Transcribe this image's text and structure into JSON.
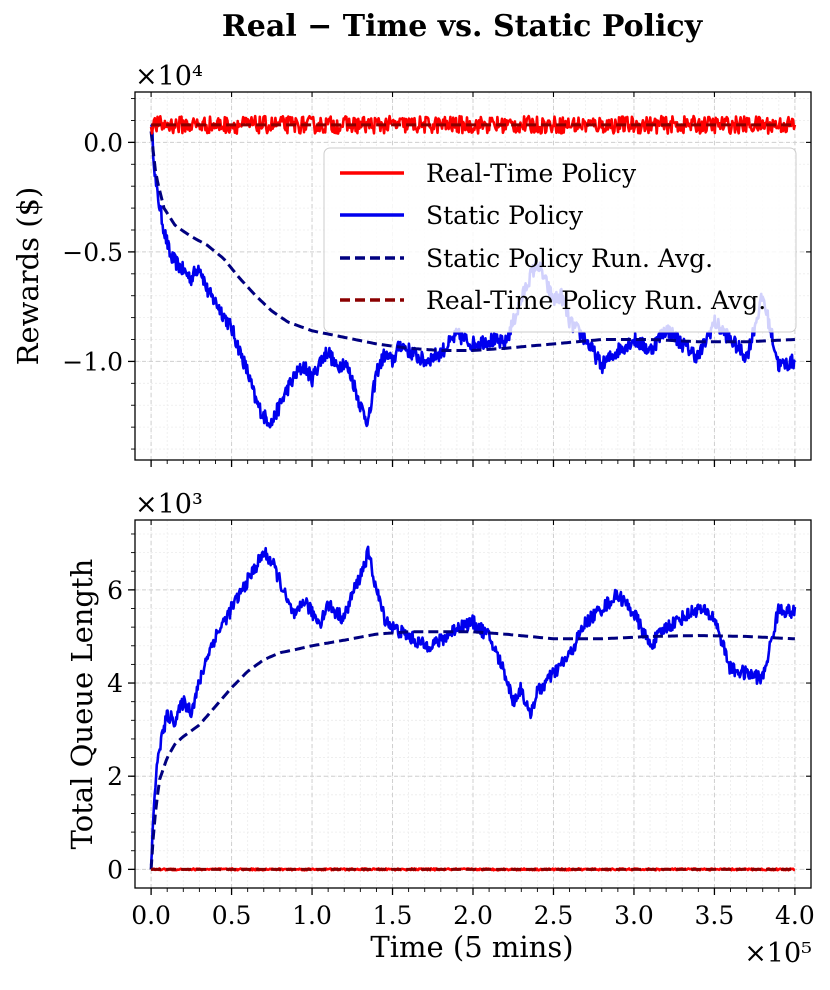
{
  "chart_data": {
    "type": "line",
    "title": "Real − Time vs. Static Policy",
    "xlabel": "Time (5 mins)",
    "x_multiplier": "×10⁵",
    "x_ticks": [
      0.0,
      0.5,
      1.0,
      1.5,
      2.0,
      2.5,
      3.0,
      3.5,
      4.0
    ],
    "x_tick_labels": [
      "0.0",
      "0.5",
      "1.0",
      "1.5",
      "2.0",
      "2.5",
      "3.0",
      "3.5",
      "4.0"
    ],
    "xlim": [
      -0.1,
      4.1
    ],
    "colors": {
      "real_time": "#ff0000",
      "static": "#0000ee",
      "static_avg": "#000080",
      "real_time_avg": "#8b0000"
    },
    "legend": {
      "position": "top-right",
      "entries": [
        {
          "label": "Real-Time Policy",
          "color": "#ff0000",
          "style": "solid"
        },
        {
          "label": "Static Policy",
          "color": "#0000ee",
          "style": "solid"
        },
        {
          "label": "Static Policy Run. Avg.",
          "color": "#000080",
          "style": "dashed"
        },
        {
          "label": "Real-Time Policy Run. Avg.",
          "color": "#8b0000",
          "style": "dashed"
        }
      ]
    },
    "subplots": [
      {
        "name": "rewards",
        "ylabel": "Rewards ($)",
        "y_multiplier": "×10⁴",
        "ylim": [
          -1.45,
          0.23
        ],
        "y_ticks": [
          0.0,
          -0.5,
          -1.0
        ],
        "y_tick_labels": [
          "0.0",
          "−0.5",
          "−1.0"
        ],
        "series": [
          {
            "name": "Real-Time Policy",
            "key": "real_time",
            "constant": 0.08,
            "noise": 0.04
          },
          {
            "name": "Static Policy",
            "key": "static",
            "noise": 0.035,
            "x": [
              0,
              0.03,
              0.08,
              0.12,
              0.18,
              0.25,
              0.3,
              0.35,
              0.42,
              0.5,
              0.55,
              0.6,
              0.65,
              0.7,
              0.75,
              0.8,
              0.85,
              0.9,
              0.95,
              1.0,
              1.05,
              1.1,
              1.15,
              1.2,
              1.25,
              1.3,
              1.35,
              1.4,
              1.45,
              1.5,
              1.55,
              1.6,
              1.7,
              1.8,
              1.9,
              2.0,
              2.1,
              2.2,
              2.3,
              2.35,
              2.4,
              2.5,
              2.55,
              2.6,
              2.7,
              2.8,
              2.9,
              3.0,
              3.1,
              3.2,
              3.3,
              3.4,
              3.5,
              3.6,
              3.7,
              3.8,
              3.9,
              4.0
            ],
            "y": [
              0.1,
              -0.2,
              -0.4,
              -0.52,
              -0.57,
              -0.62,
              -0.56,
              -0.68,
              -0.75,
              -0.85,
              -0.95,
              -1.05,
              -1.18,
              -1.25,
              -1.28,
              -1.2,
              -1.12,
              -1.06,
              -1.02,
              -1.08,
              -1.0,
              -0.95,
              -1.03,
              -1.0,
              -1.08,
              -1.2,
              -1.28,
              -1.05,
              -0.97,
              -1.0,
              -0.92,
              -0.95,
              -1.0,
              -0.96,
              -0.88,
              -0.92,
              -0.9,
              -0.92,
              -0.72,
              -0.62,
              -0.55,
              -0.72,
              -0.7,
              -0.82,
              -0.9,
              -1.02,
              -0.95,
              -0.9,
              -0.95,
              -0.85,
              -0.92,
              -0.98,
              -0.82,
              -0.9,
              -0.98,
              -0.7,
              -1.02,
              -1.0
            ]
          },
          {
            "name": "Static Policy Run. Avg.",
            "key": "static_avg",
            "dashed": true,
            "x": [
              0,
              0.03,
              0.08,
              0.15,
              0.25,
              0.35,
              0.45,
              0.55,
              0.65,
              0.75,
              0.85,
              1.0,
              1.2,
              1.4,
              1.6,
              1.8,
              2.0,
              2.2,
              2.5,
              2.8,
              3.1,
              3.4,
              3.7,
              4.0
            ],
            "y": [
              0.05,
              -0.15,
              -0.3,
              -0.38,
              -0.43,
              -0.47,
              -0.53,
              -0.62,
              -0.7,
              -0.77,
              -0.82,
              -0.86,
              -0.89,
              -0.92,
              -0.94,
              -0.95,
              -0.95,
              -0.94,
              -0.92,
              -0.9,
              -0.9,
              -0.91,
              -0.91,
              -0.9
            ]
          },
          {
            "name": "Real-Time Policy Run. Avg.",
            "key": "real_time_avg",
            "dashed": true,
            "constant": 0.08
          }
        ]
      },
      {
        "name": "queue",
        "ylabel": "Total Queue Length",
        "y_multiplier": "×10³",
        "ylim": [
          -0.4,
          7.5
        ],
        "y_ticks": [
          0,
          2,
          4,
          6
        ],
        "y_tick_labels": [
          "0",
          "2",
          "4",
          "6"
        ],
        "series": [
          {
            "name": "Real-Time Policy",
            "key": "real_time",
            "constant": 0.0,
            "noise": 0.02
          },
          {
            "name": "Static Policy",
            "key": "static",
            "noise": 0.15,
            "x": [
              0,
              0.02,
              0.05,
              0.1,
              0.15,
              0.2,
              0.25,
              0.3,
              0.35,
              0.4,
              0.45,
              0.5,
              0.55,
              0.6,
              0.65,
              0.7,
              0.75,
              0.8,
              0.85,
              0.9,
              0.95,
              1.0,
              1.05,
              1.1,
              1.15,
              1.2,
              1.25,
              1.3,
              1.35,
              1.4,
              1.45,
              1.5,
              1.6,
              1.7,
              1.8,
              1.9,
              2.0,
              2.1,
              2.2,
              2.25,
              2.3,
              2.35,
              2.4,
              2.5,
              2.6,
              2.7,
              2.8,
              2.9,
              3.0,
              3.1,
              3.2,
              3.3,
              3.4,
              3.5,
              3.6,
              3.7,
              3.8,
              3.9,
              4.0
            ],
            "y": [
              0,
              1.6,
              2.6,
              3.3,
              3.2,
              3.6,
              3.4,
              4.0,
              4.6,
              5.0,
              5.3,
              5.6,
              5.9,
              6.2,
              6.5,
              6.8,
              6.6,
              6.2,
              5.7,
              5.4,
              5.8,
              5.5,
              5.3,
              5.7,
              5.5,
              5.4,
              5.9,
              6.3,
              6.8,
              6.0,
              5.4,
              5.2,
              5.0,
              4.8,
              4.9,
              5.2,
              5.3,
              5.0,
              4.2,
              3.6,
              3.9,
              3.3,
              3.8,
              4.2,
              4.6,
              5.3,
              5.6,
              5.9,
              5.5,
              4.8,
              5.2,
              5.4,
              5.6,
              5.4,
              4.3,
              4.2,
              4.1,
              5.6,
              5.5
            ]
          },
          {
            "name": "Static Policy Run. Avg.",
            "key": "static_avg",
            "dashed": true,
            "x": [
              0,
              0.02,
              0.05,
              0.1,
              0.15,
              0.2,
              0.3,
              0.4,
              0.5,
              0.6,
              0.7,
              0.8,
              0.9,
              1.0,
              1.2,
              1.4,
              1.6,
              1.8,
              2.0,
              2.2,
              2.5,
              2.8,
              3.1,
              3.4,
              3.7,
              4.0
            ],
            "y": [
              0,
              1.0,
              1.9,
              2.4,
              2.7,
              2.85,
              3.1,
              3.5,
              3.9,
              4.25,
              4.5,
              4.65,
              4.72,
              4.8,
              4.92,
              5.05,
              5.1,
              5.1,
              5.1,
              5.05,
              4.95,
              4.95,
              5.0,
              5.02,
              5.0,
              4.95
            ]
          },
          {
            "name": "Real-Time Policy Run. Avg.",
            "key": "real_time_avg",
            "dashed": true,
            "constant": 0.0
          }
        ]
      }
    ]
  }
}
